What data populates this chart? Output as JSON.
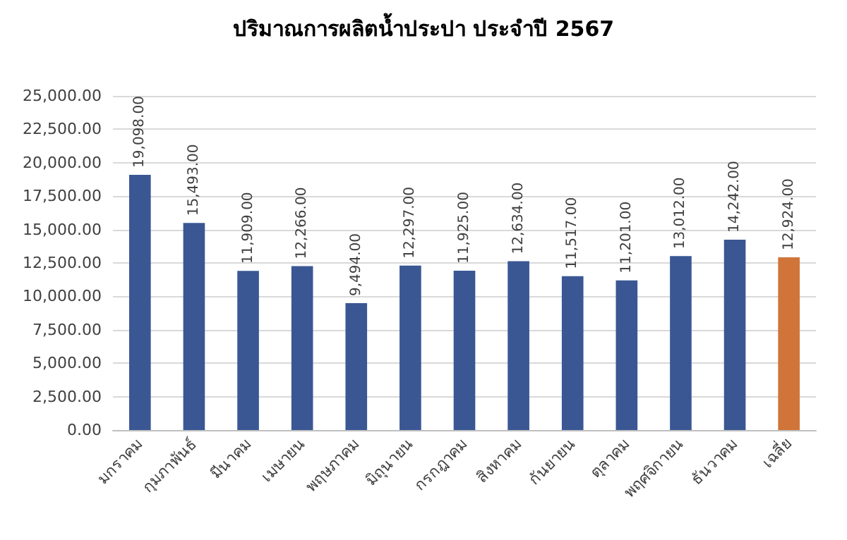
{
  "chart_data": {
    "type": "bar",
    "title": "ปริมาณการผลิตน้ำประปา ประจำปี 2567",
    "categories": [
      "มกราคม",
      "กุมภาพันธ์",
      "มีนาคม",
      "เมษายน",
      "พฤษภาคม",
      "มิถุนายน",
      "กรกฎาคม",
      "สิงหาคม",
      "กันยายน",
      "ตุลาคม",
      "พฤศจิกายน",
      "ธันวาคม",
      "เฉลี่ย"
    ],
    "values": [
      19098,
      15493,
      11909,
      12266,
      9494,
      12297,
      11925,
      12634,
      11517,
      11201,
      13012,
      14242,
      12924
    ],
    "colors": [
      "#3a5794",
      "#3a5794",
      "#3a5794",
      "#3a5794",
      "#3a5794",
      "#3a5794",
      "#3a5794",
      "#3a5794",
      "#3a5794",
      "#3a5794",
      "#3a5794",
      "#3a5794",
      "#d0743a"
    ],
    "value_labels": [
      "19,098.00",
      "15,493.00",
      "11,909.00",
      "12,266.00",
      "9,494.00",
      "12,297.00",
      "11,925.00",
      "12,634.00",
      "11,517.00",
      "11,201.00",
      "13,012.00",
      "14,242.00",
      "12,924.00"
    ],
    "ylim": [
      0,
      25000
    ],
    "yticks": [
      {
        "value": 0,
        "label": "0.00"
      },
      {
        "value": 2500,
        "label": "2,500.00"
      },
      {
        "value": 5000,
        "label": "5,000.00"
      },
      {
        "value": 7500,
        "label": "7,500.00"
      },
      {
        "value": 10000,
        "label": "10,000.00"
      },
      {
        "value": 12500,
        "label": "12,500.00"
      },
      {
        "value": 15000,
        "label": "15,000.00"
      },
      {
        "value": 17500,
        "label": "17,500.00"
      },
      {
        "value": 20000,
        "label": "20,000.00"
      },
      {
        "value": 22500,
        "label": "22,500.00"
      },
      {
        "value": 25000,
        "label": "25,000.00"
      }
    ],
    "grid": "y"
  }
}
